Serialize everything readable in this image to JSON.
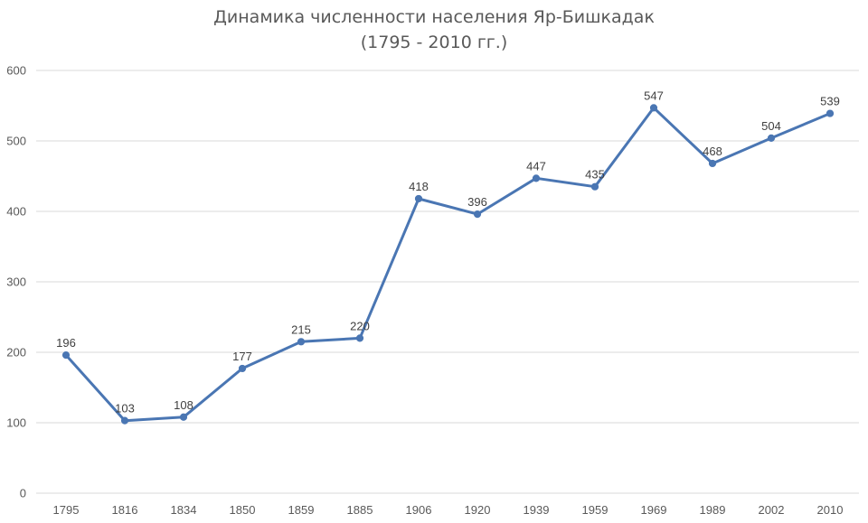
{
  "chart_data": {
    "type": "line",
    "title": "Динамика численности населения Яр-Бишкадак",
    "subtitle": "(1795 - 2010 гг.)",
    "categories": [
      "1795",
      "1816",
      "1834",
      "1850",
      "1859",
      "1885",
      "1906",
      "1920",
      "1939",
      "1959",
      "1969",
      "1989",
      "2002",
      "2010"
    ],
    "series": [
      {
        "values": [
          196,
          103,
          108,
          177,
          215,
          220,
          418,
          396,
          447,
          435,
          547,
          468,
          504,
          539
        ]
      }
    ],
    "ylim": [
      0,
      600
    ],
    "yticks": [
      0,
      100,
      200,
      300,
      400,
      500,
      600
    ],
    "grid": true,
    "data_labels": true,
    "line_color": "#4a76b3"
  }
}
